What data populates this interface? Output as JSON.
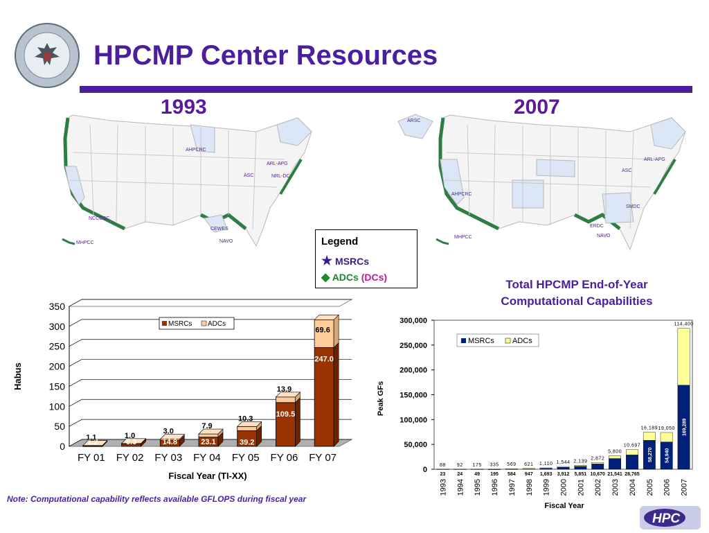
{
  "title": "HPCMP Center Resources",
  "maps": {
    "left_year": "1993",
    "right_year": "2007",
    "left_sites": [
      "AHPCRC",
      "ARL-APG",
      "ASC",
      "NRL-DC",
      "NCCOSC",
      "CEWES",
      "NAVO",
      "MHPCC"
    ],
    "right_sites": [
      "ARSC",
      "ARL-APG",
      "ASC",
      "AHPCRC",
      "SMDC",
      "ERDC",
      "NAVO",
      "MHPCC"
    ]
  },
  "legend": {
    "title": "Legend",
    "msrc_label": "MSRCs",
    "adc_label": "ADCs",
    "dc_label": "(DCs)"
  },
  "right_chart_title_line1": "Total HPCMP End-of-Year",
  "right_chart_title_line2": "Computational Capabilities",
  "note": "Note:  Computational capability reflects available GFLOPS during fiscal year",
  "logo_text": "HPC",
  "colors": {
    "brand": "#4b1e9e",
    "msrc_left": "#993300",
    "adc_left": "#ffcc99",
    "msrc_right": "#00207a",
    "adc_right": "#ffff99"
  },
  "chart_data": [
    {
      "type": "bar",
      "stacked": true,
      "title": "",
      "xlabel": "Fiscal Year (TI-XX)",
      "ylabel": "Habus",
      "ylim": [
        0,
        350
      ],
      "yticks": [
        "0",
        "50",
        "100",
        "150",
        "200",
        "250",
        "300",
        "350"
      ],
      "categories": [
        "FY 01",
        "FY 02",
        "FY 03",
        "FY 04",
        "FY 05",
        "FY 06",
        "FY 07"
      ],
      "series": [
        {
          "name": "MSRCs",
          "values": [
            1.2,
            6.3,
            14.8,
            23.1,
            39.2,
            109.5,
            247.0
          ],
          "labels": [
            "1.2",
            "6.3",
            "14.8",
            "23.1",
            "39.2",
            "109.5",
            "247.0"
          ]
        },
        {
          "name": "ADCs",
          "values": [
            1.1,
            1.0,
            3.0,
            7.9,
            10.3,
            13.9,
            69.6
          ],
          "labels": [
            "1.1",
            "1.0",
            "3.0",
            "7.9",
            "10.3",
            "13.9",
            "69.6"
          ]
        }
      ],
      "legend_position": "top-right"
    },
    {
      "type": "bar",
      "stacked": true,
      "title": "",
      "xlabel": "Fiscal Year",
      "ylabel": "Peak GFs",
      "ylim": [
        0,
        300000
      ],
      "yticks": [
        "0",
        "50,000",
        "100,000",
        "150,000",
        "200,000",
        "250,000",
        "300,000"
      ],
      "categories": [
        "1993",
        "1994",
        "1995",
        "1996",
        "1997",
        "1998",
        "1999",
        "2000",
        "2001",
        "2002",
        "2003",
        "2004",
        "2005",
        "2006",
        "2007"
      ],
      "series": [
        {
          "name": "MSRCs",
          "values": [
            23,
            24,
            49,
            195,
            584,
            947,
            1693,
            3912,
            5851,
            10670,
            21541,
            28765,
            58270,
            54940,
            169289
          ],
          "labels": [
            "23",
            "24",
            "49",
            "195",
            "584",
            "947",
            "1,693",
            "3,912",
            "5,851",
            "10,670",
            "21,541",
            "28,765",
            "58,270",
            "54,940",
            "169,289"
          ]
        },
        {
          "name": "ADCs",
          "values": [
            88,
            92,
            175,
            335,
            569,
            621,
            1110,
            1544,
            2139,
            2872,
            5800,
            10697,
            16189,
            19050,
            114400
          ],
          "labels": [
            "88",
            "92",
            "175",
            "335",
            "569",
            "621",
            "1,110",
            "1,544",
            "2,139",
            "2,872",
            "5,800",
            "10,697",
            "16,189",
            "19,050",
            "114,400"
          ]
        }
      ],
      "legend_position": "top-left"
    }
  ]
}
